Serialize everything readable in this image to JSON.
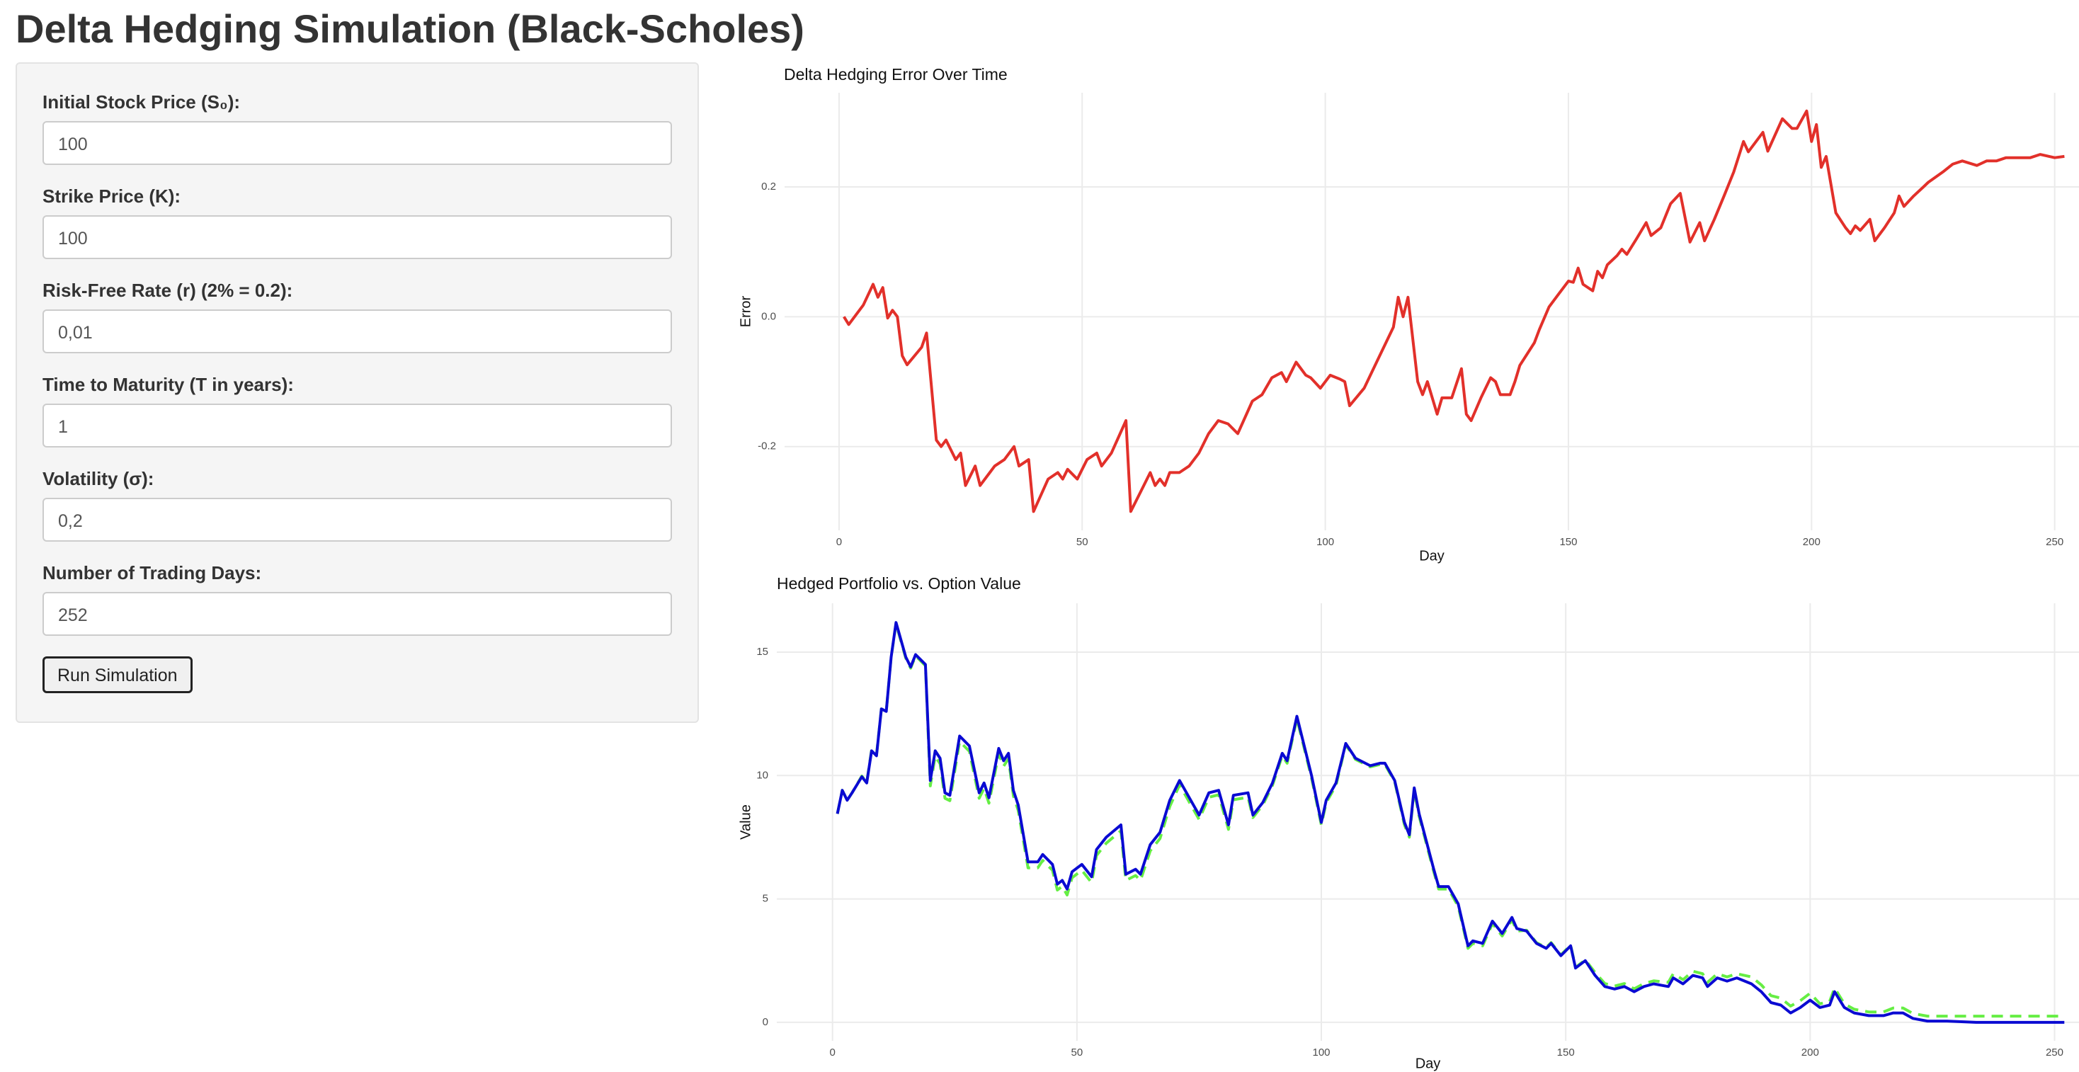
{
  "header": {
    "title": "Delta Hedging Simulation (Black-Scholes)"
  },
  "form": {
    "fields": [
      {
        "label": "Initial Stock Price (S₀):",
        "value": "100"
      },
      {
        "label": "Strike Price (K):",
        "value": "100"
      },
      {
        "label": "Risk-Free Rate (r) (2% = 0.2):",
        "value": "0,01"
      },
      {
        "label": "Time to Maturity (T in years):",
        "value": "1"
      },
      {
        "label": "Volatility (σ):",
        "value": "0,2"
      },
      {
        "label": "Number of Trading Days:",
        "value": "252"
      }
    ],
    "button": "Run Simulation"
  },
  "chart_data": [
    {
      "type": "line",
      "title": "Delta Hedging Error Over Time",
      "x_label": "Day",
      "y_label": "Error",
      "grid": true,
      "xlim": [
        -11.2,
        255
      ],
      "xticks": [
        0,
        50,
        100,
        150,
        200,
        250
      ],
      "ylim": [
        -0.329,
        0.345
      ],
      "yticks": [
        -0.2,
        {
          "value": 0,
          "label": "0.0"
        },
        0.2
      ],
      "x": [
        1,
        2,
        5,
        7,
        8,
        9,
        10,
        11,
        12,
        13,
        14,
        17,
        18,
        20,
        21,
        22,
        24,
        25,
        26,
        28,
        29,
        32,
        34,
        36,
        37,
        39,
        40,
        43,
        45,
        46,
        47,
        49,
        51,
        53,
        54,
        56,
        59,
        60,
        62,
        64,
        65,
        66,
        67,
        68,
        70,
        72,
        74,
        76,
        78,
        80,
        82,
        85,
        87,
        89,
        91,
        92,
        94,
        96,
        97,
        99,
        101,
        103,
        104,
        105,
        108,
        111,
        114,
        115,
        116,
        117,
        119,
        120,
        121,
        123,
        124,
        126,
        128,
        129,
        130,
        132,
        134,
        135,
        136,
        138,
        139,
        140,
        143,
        144,
        146,
        148,
        150,
        151,
        152,
        153,
        155,
        156,
        157,
        158,
        160,
        161,
        162,
        164,
        166,
        167,
        169,
        171,
        173,
        175,
        177,
        178,
        180,
        182,
        184,
        186,
        187,
        190,
        191,
        194,
        196,
        197,
        199,
        200,
        201,
        202,
        203,
        205,
        207,
        208,
        209,
        210,
        212,
        213,
        215,
        217,
        218,
        219,
        221,
        223,
        224,
        227,
        229,
        231,
        234,
        236,
        238,
        240,
        245,
        247,
        250,
        252
      ],
      "series": [
        {
          "color": "#e2302a",
          "dash": "solid",
          "values": [
            0.0,
            -0.012,
            0.018,
            0.05,
            0.03,
            0.045,
            -0.002,
            0.01,
            0,
            -0.06,
            -0.074,
            -0.047,
            -0.025,
            -0.19,
            -0.2,
            -0.19,
            -0.22,
            -0.21,
            -0.26,
            -0.23,
            -0.26,
            -0.23,
            -0.22,
            -0.2,
            -0.23,
            -0.22,
            -0.3,
            -0.25,
            -0.24,
            -0.25,
            -0.235,
            -0.25,
            -0.22,
            -0.21,
            -0.23,
            -0.21,
            -0.16,
            -0.3,
            -0.27,
            -0.24,
            -0.26,
            -0.25,
            -0.26,
            -0.24,
            -0.24,
            -0.23,
            -0.21,
            -0.18,
            -0.16,
            -0.165,
            -0.18,
            -0.13,
            -0.12,
            -0.094,
            -0.086,
            -0.1,
            -0.07,
            -0.09,
            -0.094,
            -0.11,
            -0.09,
            -0.096,
            -0.1,
            -0.137,
            -0.11,
            -0.063,
            -0.016,
            0.03,
            0.0,
            0.03,
            -0.1,
            -0.12,
            -0.1,
            -0.15,
            -0.125,
            -0.125,
            -0.08,
            -0.15,
            -0.16,
            -0.125,
            -0.094,
            -0.1,
            -0.12,
            -0.12,
            -0.1,
            -0.075,
            -0.04,
            -0.02,
            0.015,
            0.035,
            0.055,
            0.053,
            0.075,
            0.05,
            0.04,
            0.07,
            0.06,
            0.08,
            0.094,
            0.104,
            0.096,
            0.12,
            0.145,
            0.125,
            0.137,
            0.174,
            0.19,
            0.115,
            0.145,
            0.117,
            0.15,
            0.186,
            0.223,
            0.27,
            0.254,
            0.284,
            0.255,
            0.305,
            0.29,
            0.29,
            0.317,
            0.27,
            0.296,
            0.23,
            0.247,
            0.16,
            0.137,
            0.128,
            0.14,
            0.133,
            0.15,
            0.117,
            0.137,
            0.16,
            0.186,
            0.17,
            0.186,
            0.2,
            0.207,
            0.223,
            0.235,
            0.24,
            0.233,
            0.24,
            0.24,
            0.245,
            0.245,
            0.25,
            0.245,
            0.247
          ]
        }
      ]
    },
    {
      "type": "line",
      "title": "Hedged Portfolio vs. Option Value",
      "x_label": "Day",
      "y_label": "Value",
      "grid": true,
      "xlim": [
        -11.4,
        255
      ],
      "xticks": [
        0,
        50,
        100,
        150,
        200,
        250
      ],
      "ylim": [
        -0.75,
        16.98
      ],
      "yticks": [
        0,
        5,
        10,
        15
      ],
      "x": [
        1,
        2,
        3,
        4,
        6,
        7,
        8,
        9,
        10,
        11,
        12,
        13,
        15,
        16,
        17,
        19,
        20,
        21,
        22,
        23,
        24,
        26,
        28,
        30,
        31,
        32,
        34,
        35,
        36,
        37,
        38,
        40,
        42,
        43,
        45,
        46,
        47,
        48,
        49,
        51,
        53,
        54,
        56,
        59,
        60,
        62,
        63,
        65,
        67,
        69,
        71,
        73,
        75,
        77,
        79,
        81,
        82,
        85,
        86,
        88,
        90,
        92,
        93,
        95,
        98,
        100,
        101,
        103,
        105,
        107,
        110,
        112,
        113,
        115,
        117,
        118,
        119,
        120,
        123,
        124,
        126,
        128,
        130,
        131,
        133,
        135,
        137,
        139,
        140,
        142,
        144,
        146,
        147,
        149,
        151,
        152,
        154,
        156,
        158,
        160,
        162,
        164,
        166,
        168,
        171,
        172,
        174,
        176,
        178,
        179,
        181,
        183,
        185,
        188,
        190,
        192,
        194,
        196,
        198,
        200,
        202,
        204,
        205,
        207,
        209,
        212,
        215,
        217,
        219,
        221,
        224,
        228,
        234,
        239,
        250,
        252
      ],
      "series": [
        {
          "color": "#66ee44",
          "dash": "dashed",
          "values": [
            8.45,
            9.4,
            9.0,
            9.3,
            9.98,
            9.73,
            11.04,
            10.84,
            12.7,
            12.61,
            14.8,
            16.15,
            14.75,
            14.35,
            14.85,
            14.45,
            9.58,
            10.78,
            10.48,
            9.08,
            8.98,
            11.38,
            10.98,
            9.08,
            9.48,
            8.88,
            10.88,
            10.38,
            10.68,
            9.18,
            8.58,
            6.26,
            6.26,
            6.56,
            6.16,
            5.36,
            5.51,
            5.16,
            5.86,
            6.16,
            5.66,
            6.76,
            7.26,
            7.76,
            5.75,
            5.95,
            5.75,
            6.95,
            7.45,
            8.75,
            9.62,
            8.92,
            8.22,
            9.12,
            9.22,
            7.82,
            9.02,
            9.12,
            8.3,
            8.8,
            9.6,
            10.8,
            10.5,
            12.3,
            9.9,
            8.0,
            8.9,
            9.6,
            11.25,
            10.65,
            10.35,
            10.45,
            10.45,
            9.75,
            8.0,
            7.5,
            9.4,
            8.35,
            6.1,
            5.4,
            5.4,
            4.7,
            3.0,
            3.2,
            3.1,
            4.0,
            3.5,
            4.15,
            3.7,
            3.73,
            3.23,
            3.03,
            3.23,
            2.73,
            3.13,
            2.23,
            2.53,
            2.02,
            1.57,
            1.47,
            1.57,
            1.36,
            1.57,
            1.68,
            1.62,
            1.97,
            1.73,
            2.07,
            1.97,
            1.62,
            1.97,
            1.84,
            1.97,
            1.84,
            1.52,
            1.08,
            0.98,
            0.66,
            0.88,
            1.18,
            0.75,
            0.85,
            1.39,
            0.75,
            0.53,
            0.42,
            0.42,
            0.58,
            0.58,
            0.36,
            0.25,
            0.25,
            0.25,
            0.25,
            0.25,
            0.25
          ]
        },
        {
          "color": "#0a0ad2",
          "dash": "solid",
          "values": [
            8.45,
            9.4,
            9.0,
            9.3,
            9.95,
            9.7,
            11.0,
            10.8,
            12.7,
            12.6,
            14.8,
            16.2,
            14.8,
            14.4,
            14.9,
            14.5,
            9.8,
            11.0,
            10.7,
            9.3,
            9.2,
            11.6,
            11.2,
            9.3,
            9.7,
            9.1,
            11.1,
            10.6,
            10.9,
            9.4,
            8.8,
            6.5,
            6.5,
            6.8,
            6.4,
            5.6,
            5.75,
            5.4,
            6.1,
            6.4,
            5.9,
            7.0,
            7.5,
            8.0,
            6.0,
            6.2,
            6.0,
            7.2,
            7.7,
            9.0,
            9.8,
            9.1,
            8.4,
            9.3,
            9.4,
            8.0,
            9.2,
            9.3,
            8.4,
            8.9,
            9.7,
            10.9,
            10.6,
            12.4,
            10.0,
            8.1,
            9.0,
            9.7,
            11.3,
            10.7,
            10.4,
            10.5,
            10.5,
            9.8,
            8.1,
            7.6,
            9.5,
            8.45,
            6.2,
            5.5,
            5.5,
            4.8,
            3.1,
            3.3,
            3.2,
            4.1,
            3.6,
            4.25,
            3.8,
            3.7,
            3.2,
            3.0,
            3.2,
            2.7,
            3.1,
            2.2,
            2.5,
            1.9,
            1.45,
            1.35,
            1.45,
            1.24,
            1.45,
            1.56,
            1.45,
            1.8,
            1.56,
            1.9,
            1.8,
            1.45,
            1.8,
            1.67,
            1.8,
            1.56,
            1.24,
            0.8,
            0.7,
            0.38,
            0.6,
            0.9,
            0.6,
            0.7,
            1.24,
            0.6,
            0.38,
            0.27,
            0.27,
            0.38,
            0.38,
            0.16,
            0.05,
            0.05,
            0,
            0,
            0,
            0
          ]
        }
      ]
    }
  ]
}
